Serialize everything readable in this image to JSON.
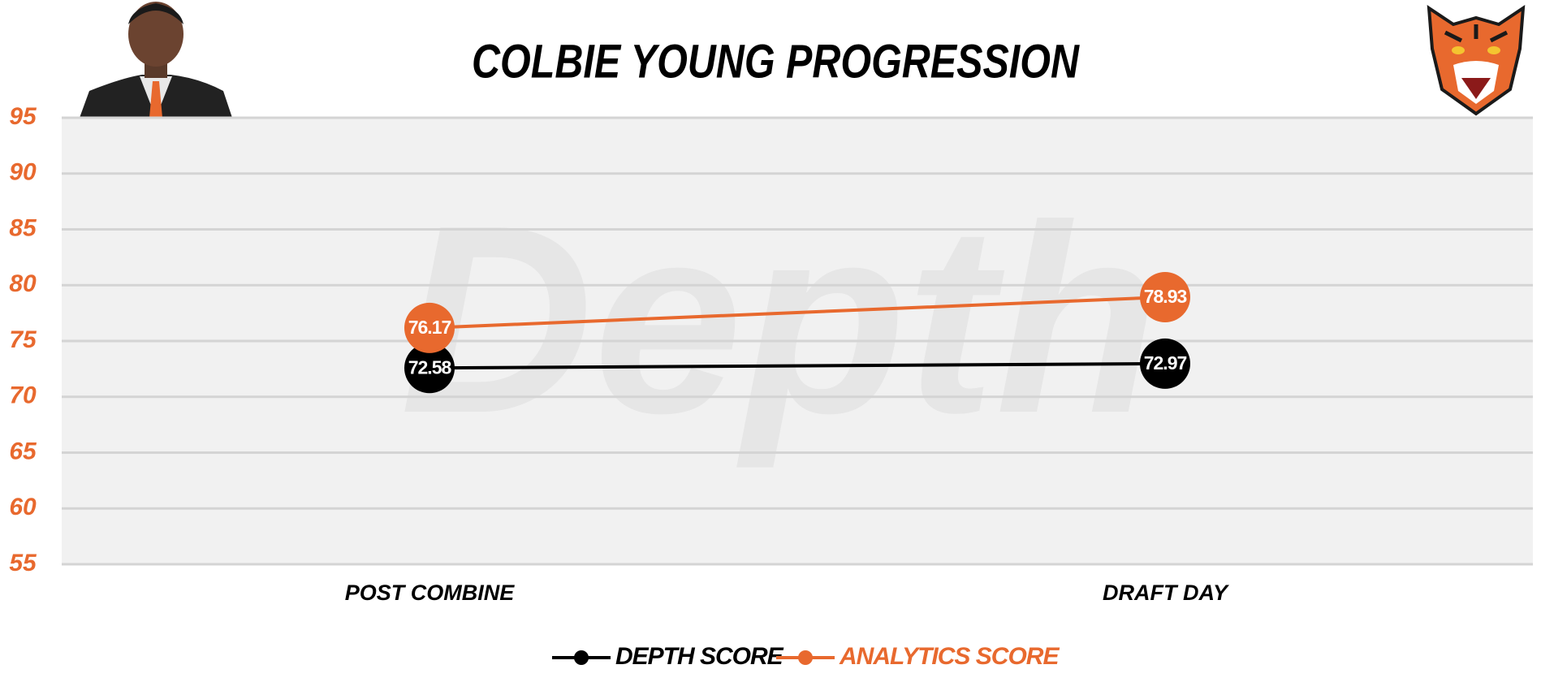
{
  "chart_data": {
    "type": "line",
    "title": "COLBIE YOUNG PROGRESSION",
    "watermark": "Depth",
    "categories": [
      "POST COMBINE",
      "DRAFT DAY"
    ],
    "series": [
      {
        "name": "DEPTH SCORE",
        "color": "#000000",
        "values": [
          72.58,
          72.97
        ]
      },
      {
        "name": "ANALYTICS SCORE",
        "color": "#e8692e",
        "values": [
          76.17,
          78.93
        ]
      }
    ],
    "ylim": [
      55,
      95
    ],
    "yticks": [
      55,
      60,
      65,
      70,
      75,
      80,
      85,
      90,
      95
    ],
    "grid": true,
    "legend": "bottom"
  }
}
